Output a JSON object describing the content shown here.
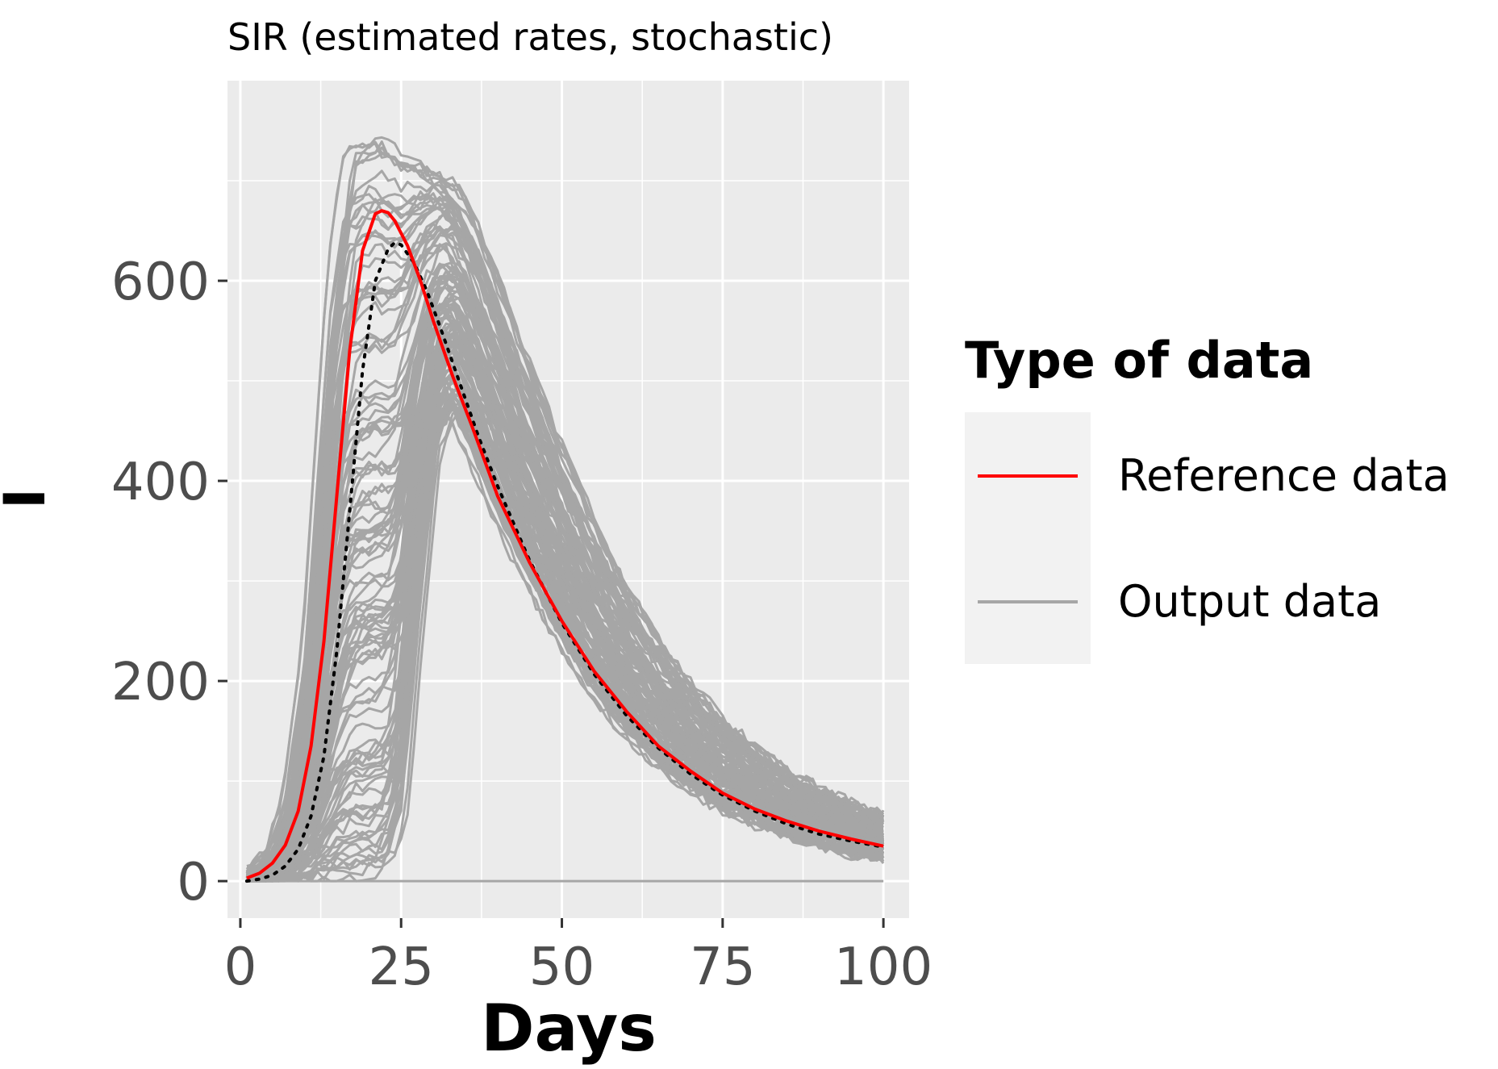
{
  "chart_data": {
    "type": "line",
    "title": "SIR (estimated rates, stochastic)",
    "xlabel": "Days",
    "ylabel": "I",
    "xlim": [
      -2,
      104
    ],
    "ylim": [
      -37,
      800
    ],
    "x_ticks": [
      0,
      25,
      50,
      75,
      100
    ],
    "y_ticks": [
      0,
      200,
      400,
      600
    ],
    "grid": true,
    "legend_position": "right",
    "legend_title": "Type of data",
    "colors": {
      "reference": "#ff0000",
      "output": "#a6a6a6",
      "deterministic": "#000000",
      "panel": "#ebebeb",
      "grid": "#ffffff",
      "legend_key": "#f2f2f2"
    },
    "series": [
      {
        "name": "Reference data",
        "style": "solid",
        "x": [
          1,
          3,
          5,
          7,
          9,
          11,
          13,
          15,
          17,
          19,
          21,
          22,
          23,
          24,
          26,
          28,
          30,
          33,
          36,
          40,
          45,
          50,
          55,
          60,
          65,
          70,
          75,
          80,
          85,
          90,
          95,
          100
        ],
        "y": [
          3,
          8,
          18,
          36,
          70,
          135,
          240,
          385,
          530,
          630,
          667,
          670,
          668,
          660,
          635,
          600,
          560,
          505,
          455,
          385,
          318,
          260,
          210,
          170,
          135,
          110,
          88,
          72,
          60,
          50,
          42,
          35
        ]
      },
      {
        "name": "",
        "style": "dotted",
        "x": [
          1,
          3,
          5,
          7,
          9,
          11,
          13,
          15,
          17,
          19,
          21,
          23,
          24,
          25,
          27,
          29,
          31,
          34,
          37,
          40,
          45,
          50,
          55,
          60,
          65,
          70,
          75,
          80,
          85,
          90,
          95,
          100
        ],
        "y": [
          0,
          2,
          6,
          15,
          32,
          65,
          125,
          230,
          370,
          510,
          600,
          632,
          638,
          636,
          618,
          590,
          555,
          500,
          445,
          395,
          320,
          258,
          207,
          166,
          133,
          107,
          86,
          70,
          57,
          47,
          40,
          34
        ]
      },
      {
        "name": "Output data",
        "style": "band",
        "x": [
          1,
          5,
          8,
          11,
          13,
          15,
          17,
          19,
          21,
          23,
          25,
          27,
          30,
          33,
          36,
          40,
          45,
          50,
          55,
          60,
          65,
          70,
          75,
          80,
          85,
          90,
          95,
          100
        ],
        "y_low": [
          0,
          0,
          0,
          0,
          0,
          0,
          0,
          0,
          2,
          10,
          60,
          220,
          430,
          470,
          430,
          370,
          300,
          240,
          190,
          150,
          118,
          93,
          73,
          58,
          46,
          36,
          28,
          22
        ],
        "y_high": [
          5,
          28,
          90,
          250,
          450,
          640,
          740,
          755,
          760,
          750,
          740,
          730,
          715,
          700,
          665,
          600,
          510,
          430,
          355,
          290,
          240,
          195,
          160,
          132,
          110,
          92,
          78,
          66
        ]
      }
    ],
    "legend": [
      {
        "label": "Reference data",
        "color": "#ff0000"
      },
      {
        "label": "Output data",
        "color": "#a6a6a6"
      }
    ]
  }
}
